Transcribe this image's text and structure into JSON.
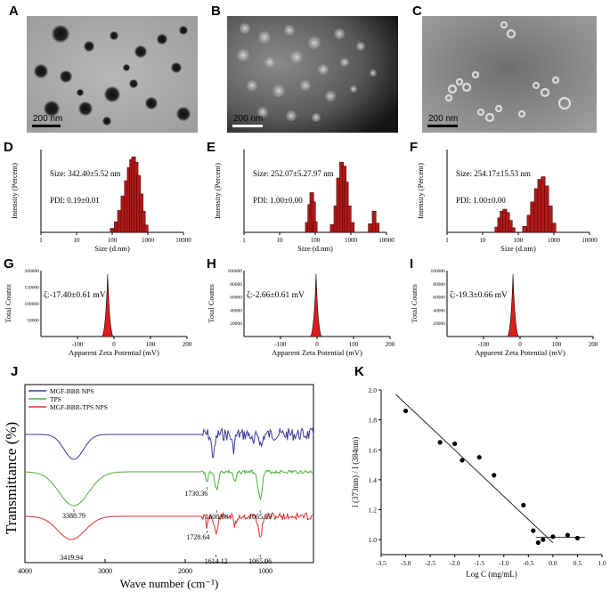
{
  "panels": {
    "A": {
      "label": "A",
      "scale": "200 nm"
    },
    "B": {
      "label": "B",
      "scale": "200 nm"
    },
    "C": {
      "label": "C",
      "scale": "200 nm"
    },
    "D": {
      "label": "D",
      "size": "Size: 342.40±5.52 nm",
      "pdi": "PDI: 0.19±0.01"
    },
    "E": {
      "label": "E",
      "size": "Size: 252.07±5.27.97 nm",
      "pdi": "PDI: 1.00±0.00"
    },
    "F": {
      "label": "F",
      "size": "Size: 254.17±15.53 nm",
      "pdi": "PDI: 1.00±0.00"
    },
    "G": {
      "label": "G",
      "zeta": "ζ:-17.40±0.61 mV"
    },
    "H": {
      "label": "H",
      "zeta": "ζ:-2.66±0.61 mV"
    },
    "I": {
      "label": "I",
      "zeta": "ζ:-19.3±0.66 mV"
    },
    "J": {
      "label": "J"
    },
    "K": {
      "label": "K"
    }
  },
  "dls_axes": {
    "xlabel": "Size (d.nm)",
    "ylabel": "Intensity (Percent)",
    "xticks": [
      "1",
      "10",
      "100",
      "1000",
      "10000"
    ]
  },
  "zeta_axes": {
    "xlabel": "Apparent Zeta Potential (mV)",
    "ylabel": "Total Counts",
    "xticks": [
      "-100",
      "0",
      "100",
      "200"
    ]
  },
  "zeta_yticks": {
    "G": [
      "200000",
      "150000",
      "100000",
      "50000",
      "0"
    ],
    "H": [
      "100000",
      "80000",
      "60000",
      "40000",
      "20000",
      "0"
    ],
    "I": [
      "100000",
      "80000",
      "60000",
      "40000",
      "20000",
      "0"
    ]
  },
  "ftir": {
    "xlabel": "Wave number  (cm⁻¹)",
    "ylabel": "Transmittance  (%)",
    "xticks": [
      "4000",
      "3000",
      "2000",
      "1000"
    ],
    "legend": [
      "MGF-BBR NPS",
      "TPS",
      "MGF-BBR-TPS NPS"
    ],
    "colors": {
      "mgf": "#3a3aa0",
      "tps": "#4caf3a",
      "mix": "#e03030"
    },
    "peaks_tps": [
      "3388.79",
      "1730.36",
      "1608.68",
      "1065.59"
    ],
    "peaks_mix": [
      "3419.94",
      "1728.64",
      "1614.12",
      "1065.06"
    ]
  },
  "chart_data": [
    {
      "type": "bar",
      "panel": "D",
      "xscale": "log",
      "xlim": [
        1,
        10000
      ],
      "x": [
        100,
        130,
        160,
        200,
        250,
        300,
        350,
        400,
        470,
        550,
        650,
        750,
        900
      ],
      "values": [
        0.6,
        1.6,
        3.3,
        5.5,
        7.8,
        9.8,
        11.0,
        11.4,
        10.6,
        8.6,
        5.8,
        3.2,
        1.1
      ]
    },
    {
      "type": "bar",
      "panel": "E",
      "xscale": "log",
      "xlim": [
        1,
        10000
      ],
      "x": [
        60,
        70,
        80,
        90,
        100,
        300,
        380,
        450,
        550,
        650,
        750,
        900,
        1100,
        3500,
        4500,
        5500
      ],
      "values": [
        1.5,
        4.2,
        6.0,
        4.6,
        1.6,
        1.2,
        4.0,
        8.2,
        10.6,
        10.0,
        7.6,
        4.0,
        1.5,
        1.3,
        3.2,
        1.4
      ]
    },
    {
      "type": "bar",
      "panel": "F",
      "xscale": "log",
      "xlim": [
        1,
        10000
      ],
      "x": [
        25,
        30,
        35,
        42,
        50,
        60,
        72,
        150,
        200,
        250,
        320,
        400,
        500,
        630,
        800,
        1000
      ],
      "values": [
        0.8,
        2.2,
        3.2,
        3.5,
        3.0,
        1.8,
        0.7,
        0.9,
        2.6,
        4.6,
        6.6,
        8.0,
        8.4,
        7.0,
        4.0,
        1.4
      ]
    },
    {
      "type": "area",
      "panel": "G",
      "peak_x": -17.4,
      "peak_y": 190000,
      "ylim": [
        0,
        200000
      ],
      "xlim": [
        -200,
        200
      ]
    },
    {
      "type": "area",
      "panel": "H",
      "peak_x": -2.66,
      "peak_y": 95000,
      "ylim": [
        0,
        100000
      ],
      "xlim": [
        -200,
        200
      ]
    },
    {
      "type": "area",
      "panel": "I",
      "peak_x": -19.3,
      "peak_y": 95000,
      "ylim": [
        0,
        100000
      ],
      "xlim": [
        -200,
        200
      ]
    },
    {
      "type": "scatter",
      "panel": "K",
      "title": "",
      "xlabel": "Log C  (mg/mL)",
      "ylabel": "I (373nm) / I (384nm)",
      "xlim": [
        -3.5,
        1.0
      ],
      "ylim": [
        0.9,
        2.0
      ],
      "xticks": [
        "-3.5",
        "-3.0",
        "-2.5",
        "-2.0",
        "-1.5",
        "-1.0",
        "-0.5",
        "0.0",
        "0.5",
        "1.0"
      ],
      "yticks": [
        "2.0",
        "1.8",
        "1.6",
        "1.4",
        "1.2",
        "1.0"
      ],
      "x": [
        -3.0,
        -2.3,
        -2.0,
        -1.85,
        -1.5,
        -1.2,
        -0.6,
        -0.4,
        -0.3,
        -0.2,
        0.0,
        0.3,
        0.5
      ],
      "y": [
        1.86,
        1.65,
        1.64,
        1.53,
        1.55,
        1.43,
        1.23,
        1.06,
        0.98,
        1.0,
        1.02,
        1.03,
        1.01
      ],
      "fit_lines": [
        {
          "x": [
            -3.2,
            0.0
          ],
          "y": [
            1.97,
            0.98
          ]
        },
        {
          "x": [
            -0.35,
            0.65
          ],
          "y": [
            1.015,
            1.015
          ]
        }
      ]
    }
  ]
}
